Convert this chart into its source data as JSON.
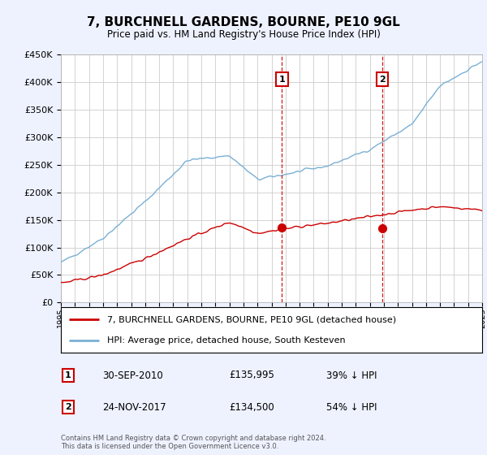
{
  "title": "7, BURCHNELL GARDENS, BOURNE, PE10 9GL",
  "subtitle": "Price paid vs. HM Land Registry's House Price Index (HPI)",
  "red_line_label": "7, BURCHNELL GARDENS, BOURNE, PE10 9GL (detached house)",
  "blue_line_label": "HPI: Average price, detached house, South Kesteven",
  "sale1_date": "30-SEP-2010",
  "sale1_price": "£135,995",
  "sale1_note": "39% ↓ HPI",
  "sale2_date": "24-NOV-2017",
  "sale2_price": "£134,500",
  "sale2_note": "54% ↓ HPI",
  "footnote": "Contains HM Land Registry data © Crown copyright and database right 2024.\nThis data is licensed under the Open Government Licence v3.0.",
  "ylim": [
    0,
    450000
  ],
  "xlim": [
    1995,
    2025
  ],
  "background_color": "#eef2ff",
  "plot_bg_color": "#ffffff",
  "grid_color": "#cccccc",
  "red_color": "#cc0000",
  "blue_color": "#7ab0d4",
  "vline_color": "#cc0000",
  "marker_box_color": "#cc0000",
  "sale1_year": 2010.75,
  "sale2_year": 2017.9,
  "sale1_price_val": 135995,
  "sale2_price_val": 134500
}
